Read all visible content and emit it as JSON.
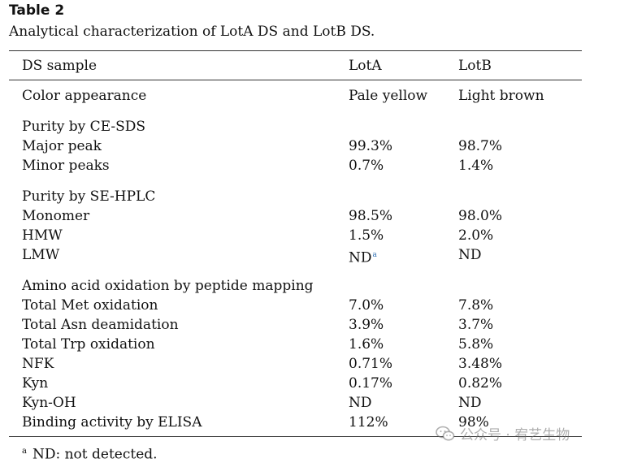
{
  "table": {
    "label": "Table 2",
    "caption": "Analytical characterization of LotA DS and LotB DS.",
    "header": [
      "DS sample",
      "LotA",
      "LotB"
    ],
    "rows": [
      {
        "cells": [
          "Color appearance",
          "Pale yellow",
          "Light brown"
        ]
      },
      {
        "cells": [
          "Purity by CE-SDS",
          "",
          ""
        ]
      },
      {
        "cells": [
          "Major peak",
          "99.3%",
          "98.7%"
        ]
      },
      {
        "cells": [
          "Minor peaks",
          "0.7%",
          "1.4%"
        ]
      },
      {
        "cells": [
          "Purity by SE-HPLC",
          "",
          ""
        ]
      },
      {
        "cells": [
          "Monomer",
          "98.5%",
          "98.0%"
        ]
      },
      {
        "cells": [
          "HMW",
          "1.5%",
          "2.0%"
        ]
      },
      {
        "cells": [
          "LMW",
          "ND",
          "ND"
        ],
        "footnote_ref": "a"
      },
      {
        "cells": [
          "Amino acid oxidation by peptide mapping",
          "",
          ""
        ]
      },
      {
        "cells": [
          "Total Met oxidation",
          "7.0%",
          "7.8%"
        ]
      },
      {
        "cells": [
          "Total Asn deamidation",
          "3.9%",
          "3.7%"
        ]
      },
      {
        "cells": [
          "Total Trp oxidation",
          "1.6%",
          "5.8%"
        ]
      },
      {
        "cells": [
          "NFK",
          "0.71%",
          "3.48%"
        ]
      },
      {
        "cells": [
          "Kyn",
          "0.17%",
          "0.82%"
        ]
      },
      {
        "cells": [
          "Kyn-OH",
          "ND",
          "ND"
        ]
      },
      {
        "cells": [
          "Binding activity by ELISA",
          "112%",
          "98%"
        ]
      }
    ],
    "footnote": {
      "mark": "a",
      "text": "ND: not detected."
    }
  },
  "watermark": {
    "text": "公众号 · 宥艺生物",
    "icon": "wechat-icon"
  }
}
